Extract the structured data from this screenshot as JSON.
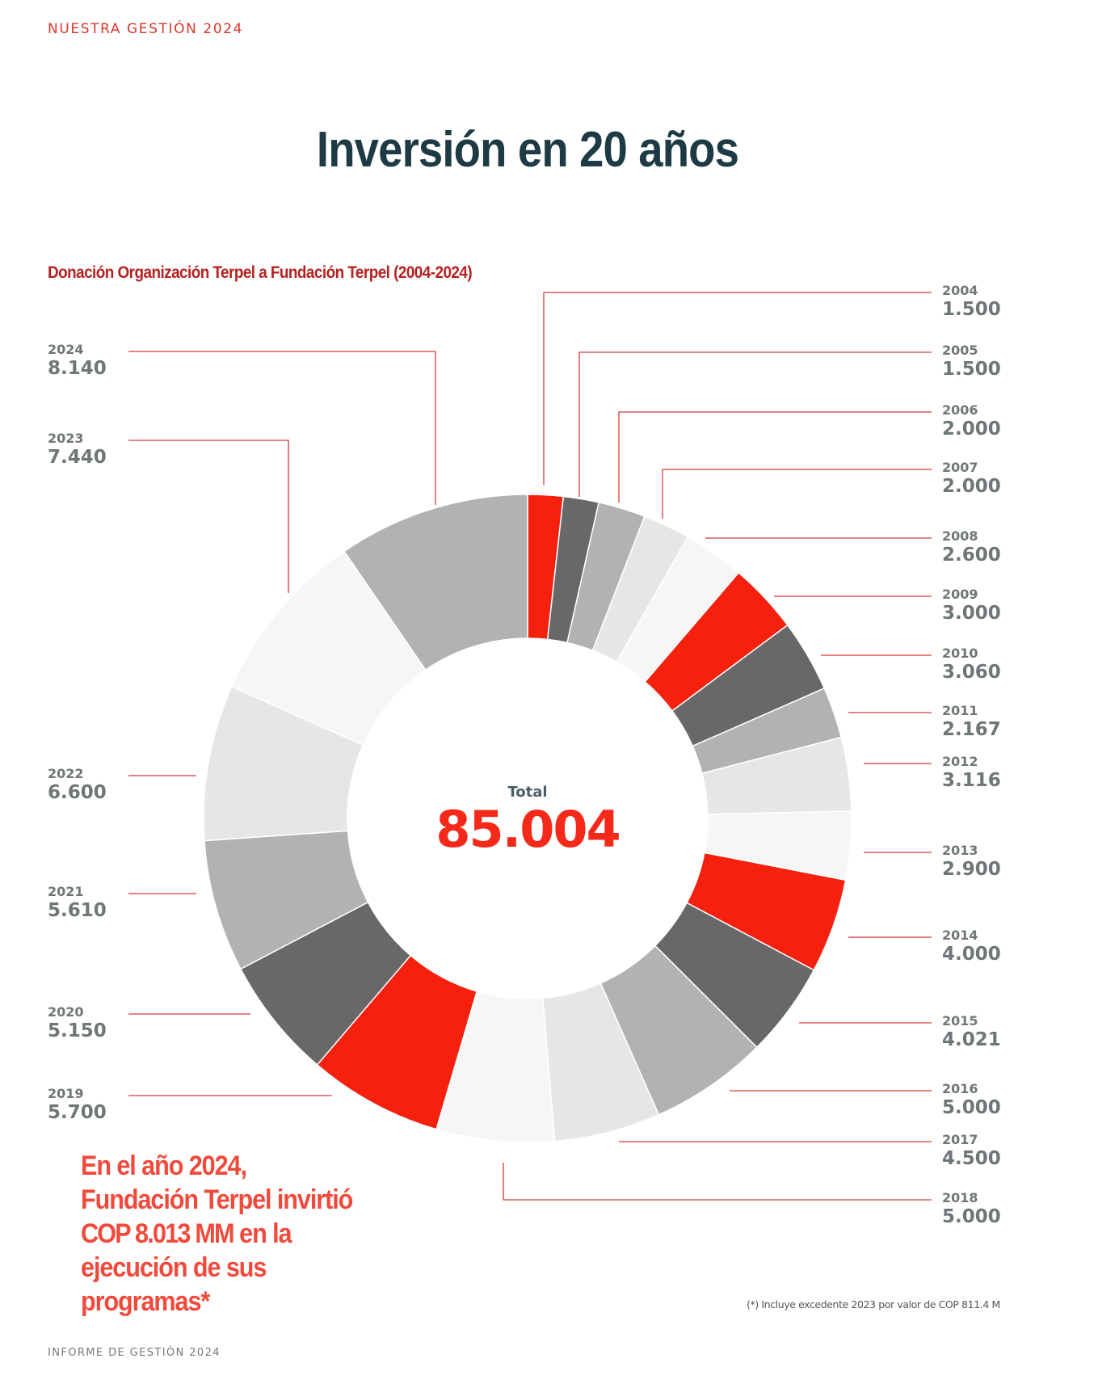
{
  "header": {
    "section": "NUESTRA GESTIÓN 2024"
  },
  "page_title": "Inversión en 20 años",
  "chart_data": {
    "type": "pie",
    "variant": "donut",
    "title": "Donación Organización Terpel a Fundación Terpel (2004-2024)",
    "center_label": "Total",
    "center_value": "85.004",
    "categories": [
      "2004",
      "2005",
      "2006",
      "2007",
      "2008",
      "2009",
      "2010",
      "2011",
      "2012",
      "2013",
      "2014",
      "2015",
      "2016",
      "2017",
      "2018",
      "2019",
      "2020",
      "2021",
      "2022",
      "2023",
      "2024"
    ],
    "values": [
      1500,
      1500,
      2000,
      2000,
      2600,
      3000,
      3060,
      2167,
      3116,
      2900,
      4000,
      4021,
      5000,
      4500,
      5000,
      5700,
      5150,
      5610,
      6600,
      7440,
      8140
    ],
    "value_labels": [
      "1.500",
      "1.500",
      "2.000",
      "2.000",
      "2.600",
      "3.000",
      "3.060",
      "2.167",
      "3.116",
      "2.900",
      "4.000",
      "4.021",
      "5.000",
      "4.500",
      "5.000",
      "5.700",
      "5.150",
      "5.610",
      "6.600",
      "7.440",
      "8.140"
    ],
    "colors": [
      "#f5200e",
      "#686868",
      "#b2b2b2",
      "#e6e6e6",
      "#f6f6f6",
      "#f5200e",
      "#686868",
      "#b2b2b2",
      "#e6e6e6",
      "#f6f6f6",
      "#f5200e",
      "#686868",
      "#b2b2b2",
      "#e6e6e6",
      "#f6f6f6",
      "#f5200e",
      "#686868",
      "#b2b2b2",
      "#e6e6e6",
      "#f6f6f6",
      "#b2b2b2"
    ],
    "leader_color": "#d8393a",
    "start": "top",
    "direction": "clockwise"
  },
  "highlight": {
    "line1": "En el año 2024,",
    "line2": "Fundación Terpel invirtió",
    "line3_strong": "COP 8.013 MM",
    "line3_rest": " en la",
    "line4": "ejecución de sus",
    "line5": "programas*"
  },
  "footnote": "(*) Incluye excedente 2023 por valor de COP 811.4 M",
  "footer": "INFORME DE GESTIÓN 2024"
}
